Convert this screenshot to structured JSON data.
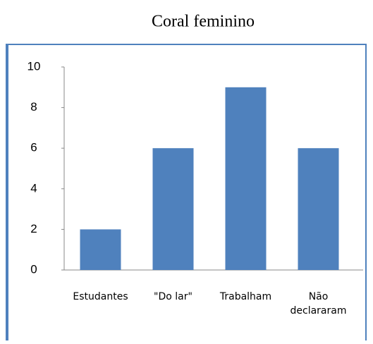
{
  "chart_data": {
    "type": "bar",
    "title": "Coral feminino",
    "categories": [
      "Estudantes",
      "\"Do lar\"",
      "Trabalham",
      "Não declararam"
    ],
    "values": [
      2,
      6,
      9,
      6
    ],
    "color": "#4f81bd",
    "ylim": [
      0,
      10
    ],
    "yticks": [
      0,
      2,
      4,
      6,
      8,
      10
    ],
    "grid": false
  }
}
